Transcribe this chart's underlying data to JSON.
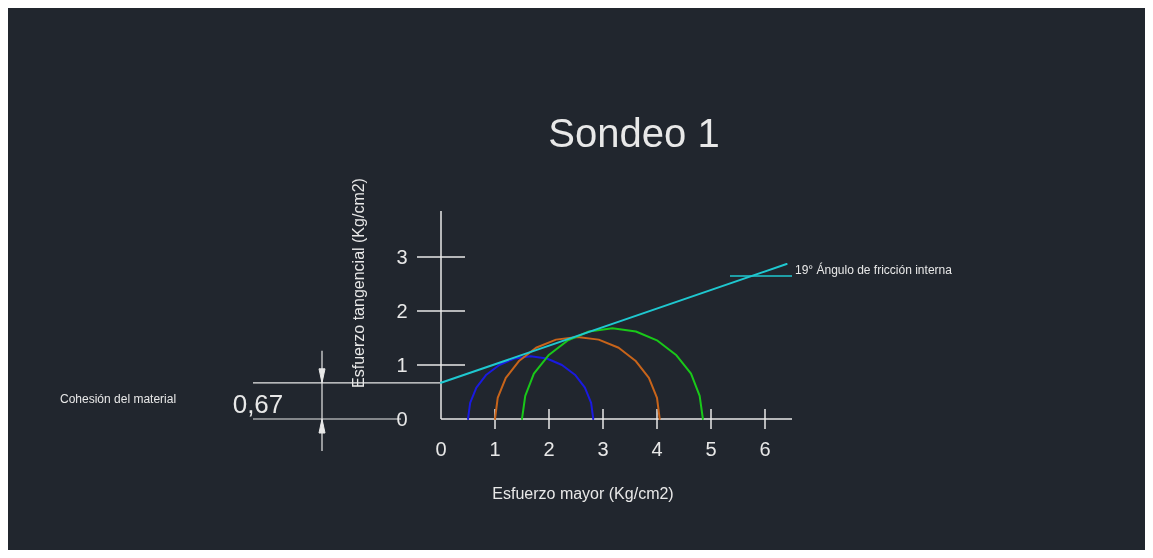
{
  "chart_data": {
    "type": "line",
    "title": "Sondeo 1",
    "xlabel": "Esfuerzo mayor (Kg/cm2)",
    "ylabel": "Esfuerzo tangencial (Kg/cm2)",
    "xlim": [
      0,
      6.5
    ],
    "ylim": [
      0,
      3.85
    ],
    "xticks": [
      0,
      1,
      2,
      3,
      4,
      5,
      6
    ],
    "yticks": [
      0,
      1,
      2,
      3
    ],
    "grid": false,
    "series": [
      {
        "color": "#1a1ae0",
        "x": [
          0.5,
          0.54,
          0.655,
          0.84,
          1.08,
          1.36,
          1.66,
          1.96,
          2.24,
          2.48,
          2.665,
          2.78,
          2.82
        ],
        "values": [
          0,
          0.3,
          0.58,
          0.82,
          1.0,
          1.12,
          1.16,
          1.12,
          1.0,
          0.82,
          0.58,
          0.3,
          0
        ]
      },
      {
        "color": "#c8641a",
        "x": [
          1.0,
          1.05,
          1.2,
          1.45,
          1.76,
          2.13,
          2.525,
          2.92,
          3.29,
          3.6,
          3.85,
          4.0,
          4.05
        ],
        "values": [
          0,
          0.39,
          0.76,
          1.08,
          1.32,
          1.47,
          1.52,
          1.47,
          1.32,
          1.08,
          0.76,
          0.39,
          0
        ]
      },
      {
        "color": "#19c819",
        "x": [
          1.5,
          1.56,
          1.72,
          1.99,
          2.34,
          2.74,
          3.175,
          3.61,
          4.01,
          4.36,
          4.63,
          4.79,
          4.85
        ],
        "values": [
          0,
          0.43,
          0.84,
          1.18,
          1.45,
          1.62,
          1.68,
          1.62,
          1.45,
          1.18,
          0.84,
          0.43,
          0
        ]
      },
      {
        "color": "#1fc8d0",
        "x": [
          0,
          6.4
        ],
        "values": [
          0.67,
          2.87
        ]
      }
    ],
    "ref_lines": [
      {
        "axis": "y",
        "value": 0.67,
        "label": "0,67",
        "color": "#e8e8e8"
      }
    ],
    "annotations": [
      "Cohesión del material",
      "19°  Ángulo de fricción interna"
    ]
  }
}
